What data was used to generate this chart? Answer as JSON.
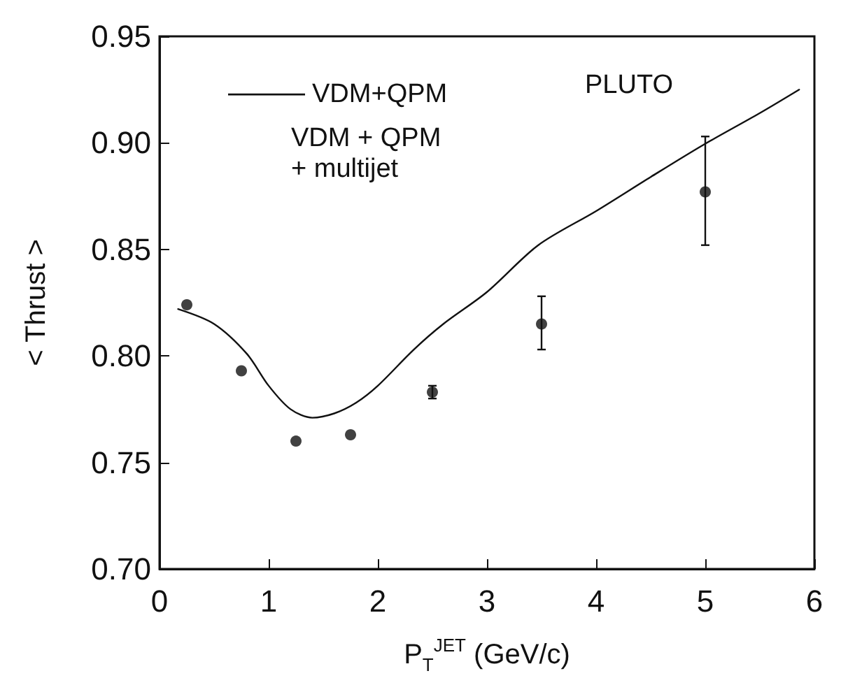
{
  "chart_data": {
    "type": "scatter",
    "xlabel": "P$_{T}$$^{JET}$ (GeV/c)",
    "ylabel": "< Thrust >",
    "annotations": [
      "PLUTO",
      "VDM + QPM\n+ multijet"
    ],
    "series": [
      {
        "color": "#111111",
        "marker": "circle",
        "x": [
          0.25,
          0.75,
          1.25,
          1.75,
          2.5,
          3.5,
          5.0
        ],
        "values": [
          0.824,
          0.793,
          0.76,
          0.763,
          0.783,
          0.815,
          0.877
        ],
        "errors": [
          null,
          null,
          null,
          null,
          0.003,
          [
            0.803,
            0.828
          ],
          [
            0.852,
            0.903
          ]
        ]
      },
      {
        "type": "line",
        "name": "VDM+QPM",
        "color": "#111111",
        "line_style": "solid",
        "marker": "none",
        "x": [
          0.17,
          0.5,
          0.8,
          1.0,
          1.2,
          1.4,
          1.6,
          1.8,
          2.0,
          2.33,
          2.6,
          3.0,
          3.47,
          4.0,
          4.5,
          4.98,
          5.5,
          5.86
        ],
        "values": [
          0.822,
          0.815,
          0.801,
          0.786,
          0.775,
          0.771,
          0.773,
          0.778,
          0.786,
          0.803,
          0.815,
          0.83,
          0.852,
          0.868,
          0.884,
          0.899,
          0.914,
          0.925
        ]
      }
    ],
    "xlim": [
      0,
      6
    ],
    "xticks": [
      0,
      1,
      2,
      3,
      4,
      5,
      6
    ],
    "ylim": [
      0.7,
      0.95
    ],
    "yticks": [
      {
        "value": 0.7,
        "label": "0.70"
      },
      {
        "value": 0.75,
        "label": "0.75"
      },
      {
        "value": 0.8,
        "label": "0.80"
      },
      {
        "value": 0.85,
        "label": "0.85"
      },
      {
        "value": 0.9,
        "label": "0.90"
      },
      {
        "value": 0.95,
        "label": "0.95"
      }
    ],
    "grid": false,
    "legend": "top left"
  }
}
